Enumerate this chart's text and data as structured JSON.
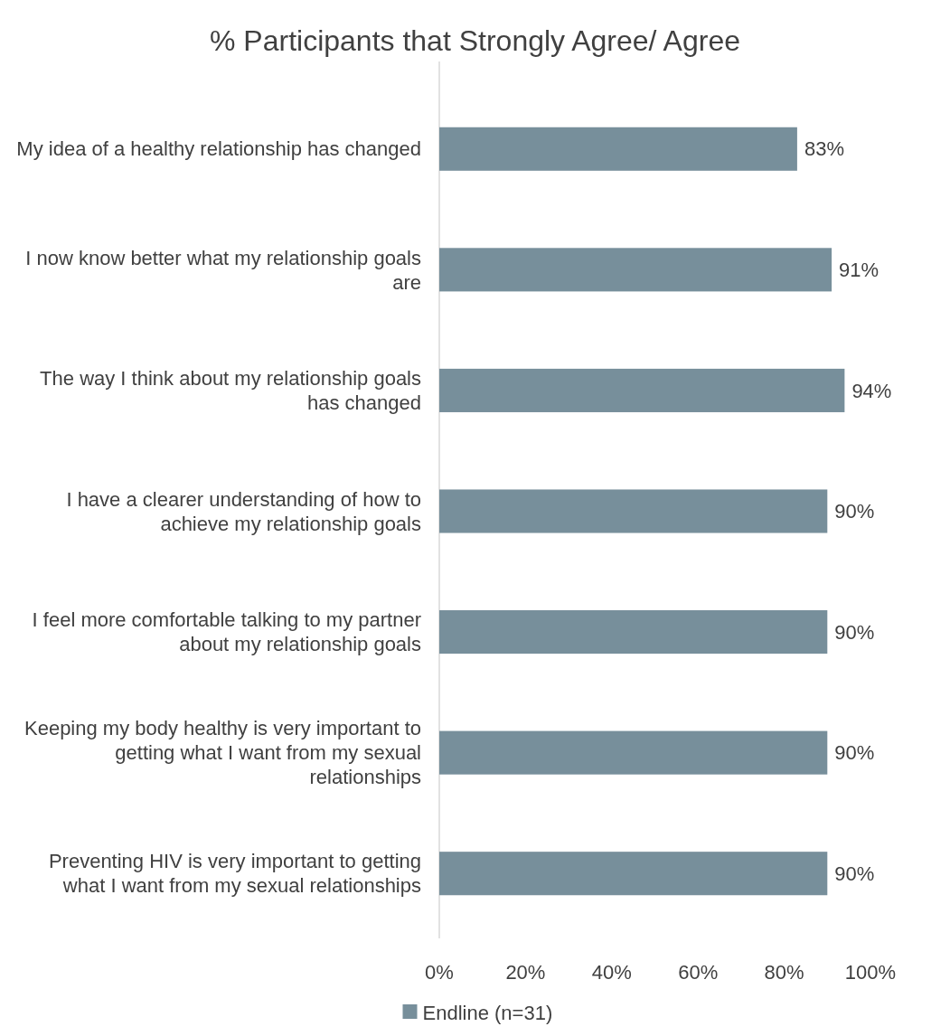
{
  "chart_data": {
    "type": "bar",
    "orientation": "horizontal",
    "title": "% Participants that Strongly Agree/ Agree",
    "categories": [
      "My idea of a healthy relationship has changed",
      "I now know better what my relationship goals are",
      "The way I think about my relationship goals has changed",
      "I have a clearer understanding of how to achieve my relationship goals",
      "I feel more comfortable talking to my partner about my relationship goals",
      "Keeping my body healthy is very important to getting what I want from my sexual relationships",
      "Preventing HIV is very important to getting what I want from my sexual relationships"
    ],
    "series": [
      {
        "name": "Endline (n=31)",
        "color": "#778f9b",
        "values": [
          83,
          91,
          94,
          90,
          90,
          90,
          90
        ],
        "value_labels": [
          "83%",
          "91%",
          "94%",
          "90%",
          "90%",
          "90%",
          "90%"
        ]
      }
    ],
    "xlim": [
      0,
      100
    ],
    "xticks": [
      {
        "value": 0,
        "label": "0%"
      },
      {
        "value": 20,
        "label": "20%"
      },
      {
        "value": 40,
        "label": "40%"
      },
      {
        "value": 60,
        "label": "60%"
      },
      {
        "value": 80,
        "label": "80%"
      },
      {
        "value": 100,
        "label": "100%"
      }
    ],
    "legend": "bottom"
  }
}
